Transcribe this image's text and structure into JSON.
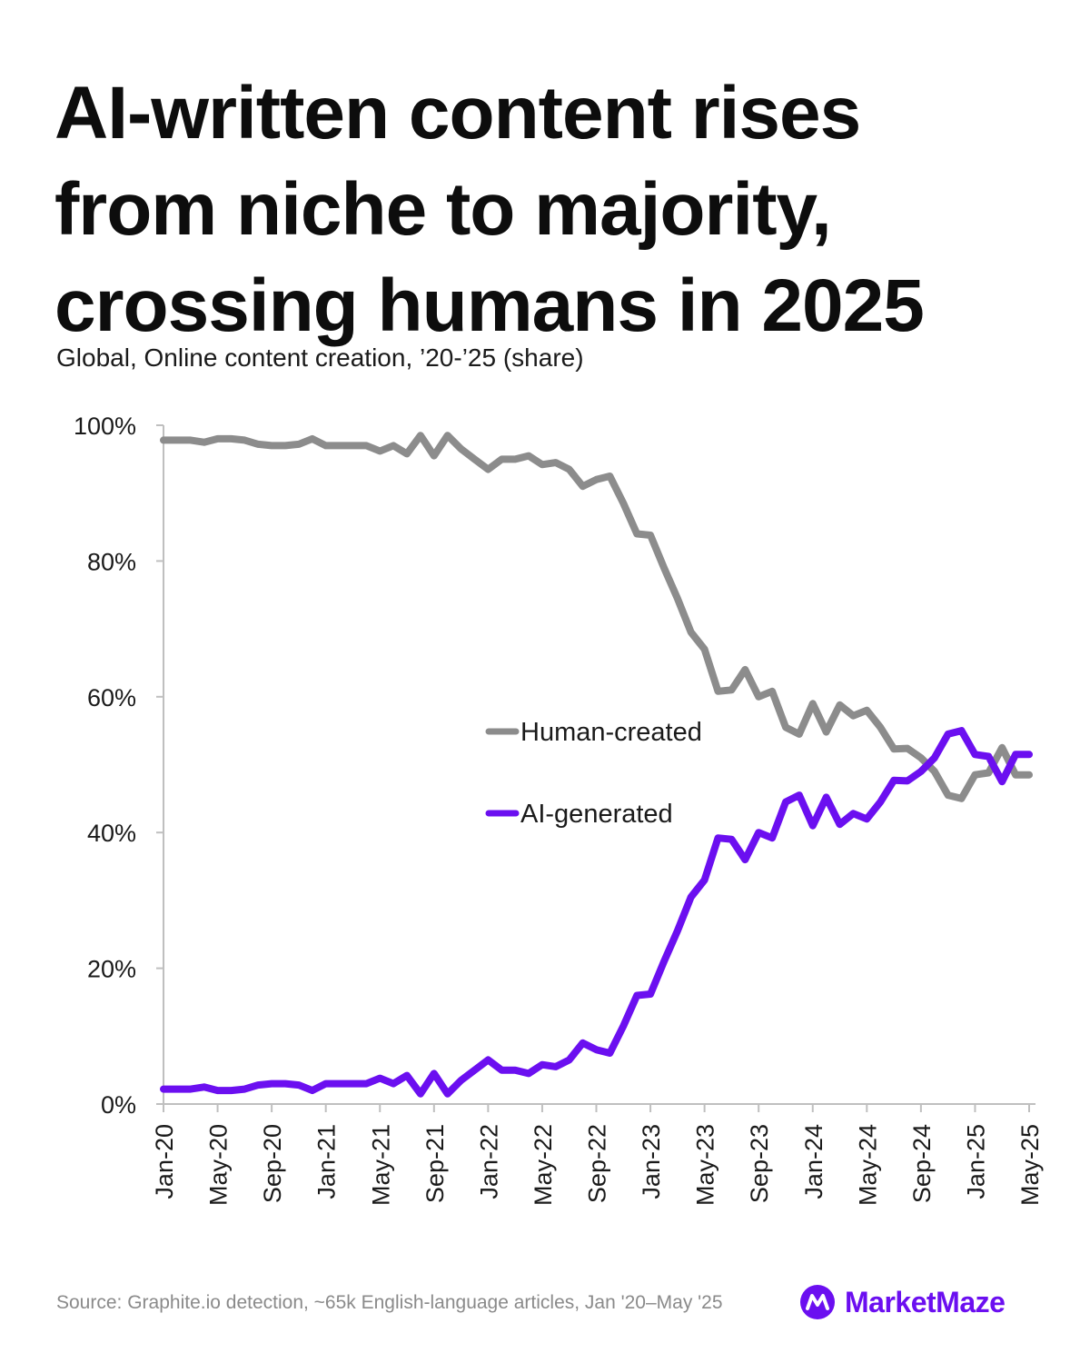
{
  "title_lines": [
    "AI-written content rises",
    "from niche to majority,",
    "crossing humans in 2025"
  ],
  "subtitle": "Global, Online content creation, ’20-’25 (share)",
  "source": "Source: Graphite.io detection, ~65k English-language articles, Jan '20–May '25",
  "brand": "MarketMaze",
  "colors": {
    "human": "#8c8c8c",
    "ai": "#6b0ff0",
    "axis": "#bfbfbf",
    "brand": "#6b0ff0"
  },
  "chart_data": {
    "type": "line",
    "title": "AI-written content rises from niche to majority, crossing humans in 2025",
    "xlabel": "",
    "ylabel": "",
    "ylim": [
      0,
      100
    ],
    "y_ticks": [
      "0%",
      "20%",
      "40%",
      "60%",
      "80%",
      "100%"
    ],
    "x_tick_labels": [
      "Jan-20",
      "May-20",
      "Sep-20",
      "Jan-21",
      "May-21",
      "Sep-21",
      "Jan-22",
      "May-22",
      "Sep-22",
      "Jan-23",
      "May-23",
      "Sep-23",
      "Jan-24",
      "May-24",
      "Sep-24",
      "Jan-25",
      "May-25"
    ],
    "grid": false,
    "legend": "center-right",
    "series": [
      {
        "name": "Human-created",
        "values": [
          97.8,
          97.8,
          97.8,
          97.5,
          98.0,
          98.0,
          97.8,
          97.2,
          97.0,
          97.0,
          97.2,
          98.0,
          97.0,
          97.0,
          97.0,
          97.0,
          96.2,
          97.0,
          95.8,
          98.5,
          95.5,
          98.5,
          96.5,
          95.0,
          93.5,
          95.0,
          95.0,
          95.5,
          94.2,
          94.5,
          93.5,
          91.0,
          92.0,
          92.5,
          88.5,
          84.0,
          83.8,
          79.0,
          74.5,
          69.5,
          67.0,
          60.8,
          61.0,
          64.0,
          60.0,
          60.8,
          55.5,
          54.5,
          59.0,
          54.8,
          58.8,
          57.2,
          58.0,
          55.5,
          52.3,
          52.4,
          51.0,
          49.0,
          45.5,
          45.0,
          48.5,
          48.8,
          52.5,
          48.5,
          48.5
        ]
      },
      {
        "name": "AI-generated",
        "values": [
          2.2,
          2.2,
          2.2,
          2.5,
          2.0,
          2.0,
          2.2,
          2.8,
          3.0,
          3.0,
          2.8,
          2.0,
          3.0,
          3.0,
          3.0,
          3.0,
          3.8,
          3.0,
          4.2,
          1.5,
          4.5,
          1.5,
          3.5,
          5.0,
          6.5,
          5.0,
          5.0,
          4.5,
          5.8,
          5.5,
          6.5,
          9.0,
          8.0,
          7.5,
          11.5,
          16.0,
          16.2,
          21.0,
          25.5,
          30.5,
          33.0,
          39.2,
          39.0,
          36.0,
          40.0,
          39.2,
          44.5,
          45.5,
          41.0,
          45.2,
          41.2,
          42.8,
          42.0,
          44.5,
          47.7,
          47.6,
          49.0,
          51.0,
          54.5,
          55.0,
          51.5,
          51.2,
          47.5,
          51.5,
          51.5
        ]
      }
    ]
  }
}
